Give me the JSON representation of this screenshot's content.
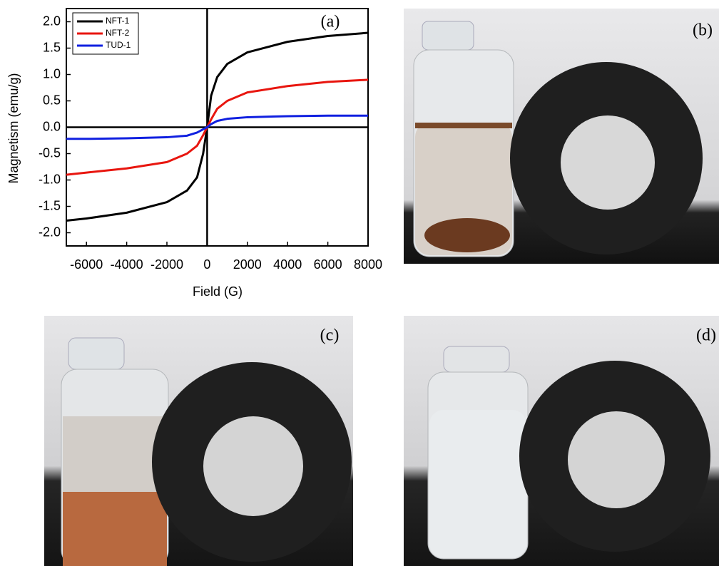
{
  "chart_data": {
    "type": "line",
    "annotation": "(a)",
    "x_label": "Field (G)",
    "y_label": "Magnetism (emu/g)",
    "x": [
      -7000,
      -6000,
      -4000,
      -2000,
      -1000,
      -500,
      -200,
      0,
      200,
      500,
      1000,
      2000,
      4000,
      6000,
      8000
    ],
    "series": [
      {
        "name": "NFT-1",
        "color": "#000000",
        "values": [
          -1.77,
          -1.73,
          -1.62,
          -1.42,
          -1.2,
          -0.95,
          -0.5,
          0,
          0.6,
          0.95,
          1.2,
          1.42,
          1.62,
          1.73,
          1.79
        ]
      },
      {
        "name": "NFT-2",
        "color": "#e8160f",
        "values": [
          -0.9,
          -0.86,
          -0.78,
          -0.66,
          -0.5,
          -0.35,
          -0.15,
          0,
          0.15,
          0.35,
          0.5,
          0.66,
          0.78,
          0.86,
          0.9
        ]
      },
      {
        "name": "TUD-1",
        "color": "#1020e0",
        "values": [
          -0.22,
          -0.22,
          -0.21,
          -0.19,
          -0.16,
          -0.1,
          -0.04,
          0,
          0.06,
          0.12,
          0.16,
          0.19,
          0.21,
          0.22,
          0.22
        ]
      }
    ],
    "xlim": [
      -7000,
      8000
    ],
    "xticks": [
      -6000,
      -4000,
      -2000,
      0,
      2000,
      4000,
      6000,
      8000
    ],
    "ylim": [
      -2.25,
      2.25
    ],
    "yticks": [
      {
        "value": -2,
        "label": "-2.0"
      },
      -1.5,
      {
        "value": -1,
        "label": "-1.0"
      },
      -0.5,
      {
        "value": 0,
        "label": "0.0"
      },
      0.5,
      {
        "value": 1,
        "label": "1.0"
      },
      1.5,
      {
        "value": 2,
        "label": "2.0"
      }
    ],
    "legend": "upper left"
  },
  "panels": [
    {
      "label": "(b)"
    },
    {
      "label": "(c)"
    },
    {
      "label": "(d)"
    }
  ]
}
